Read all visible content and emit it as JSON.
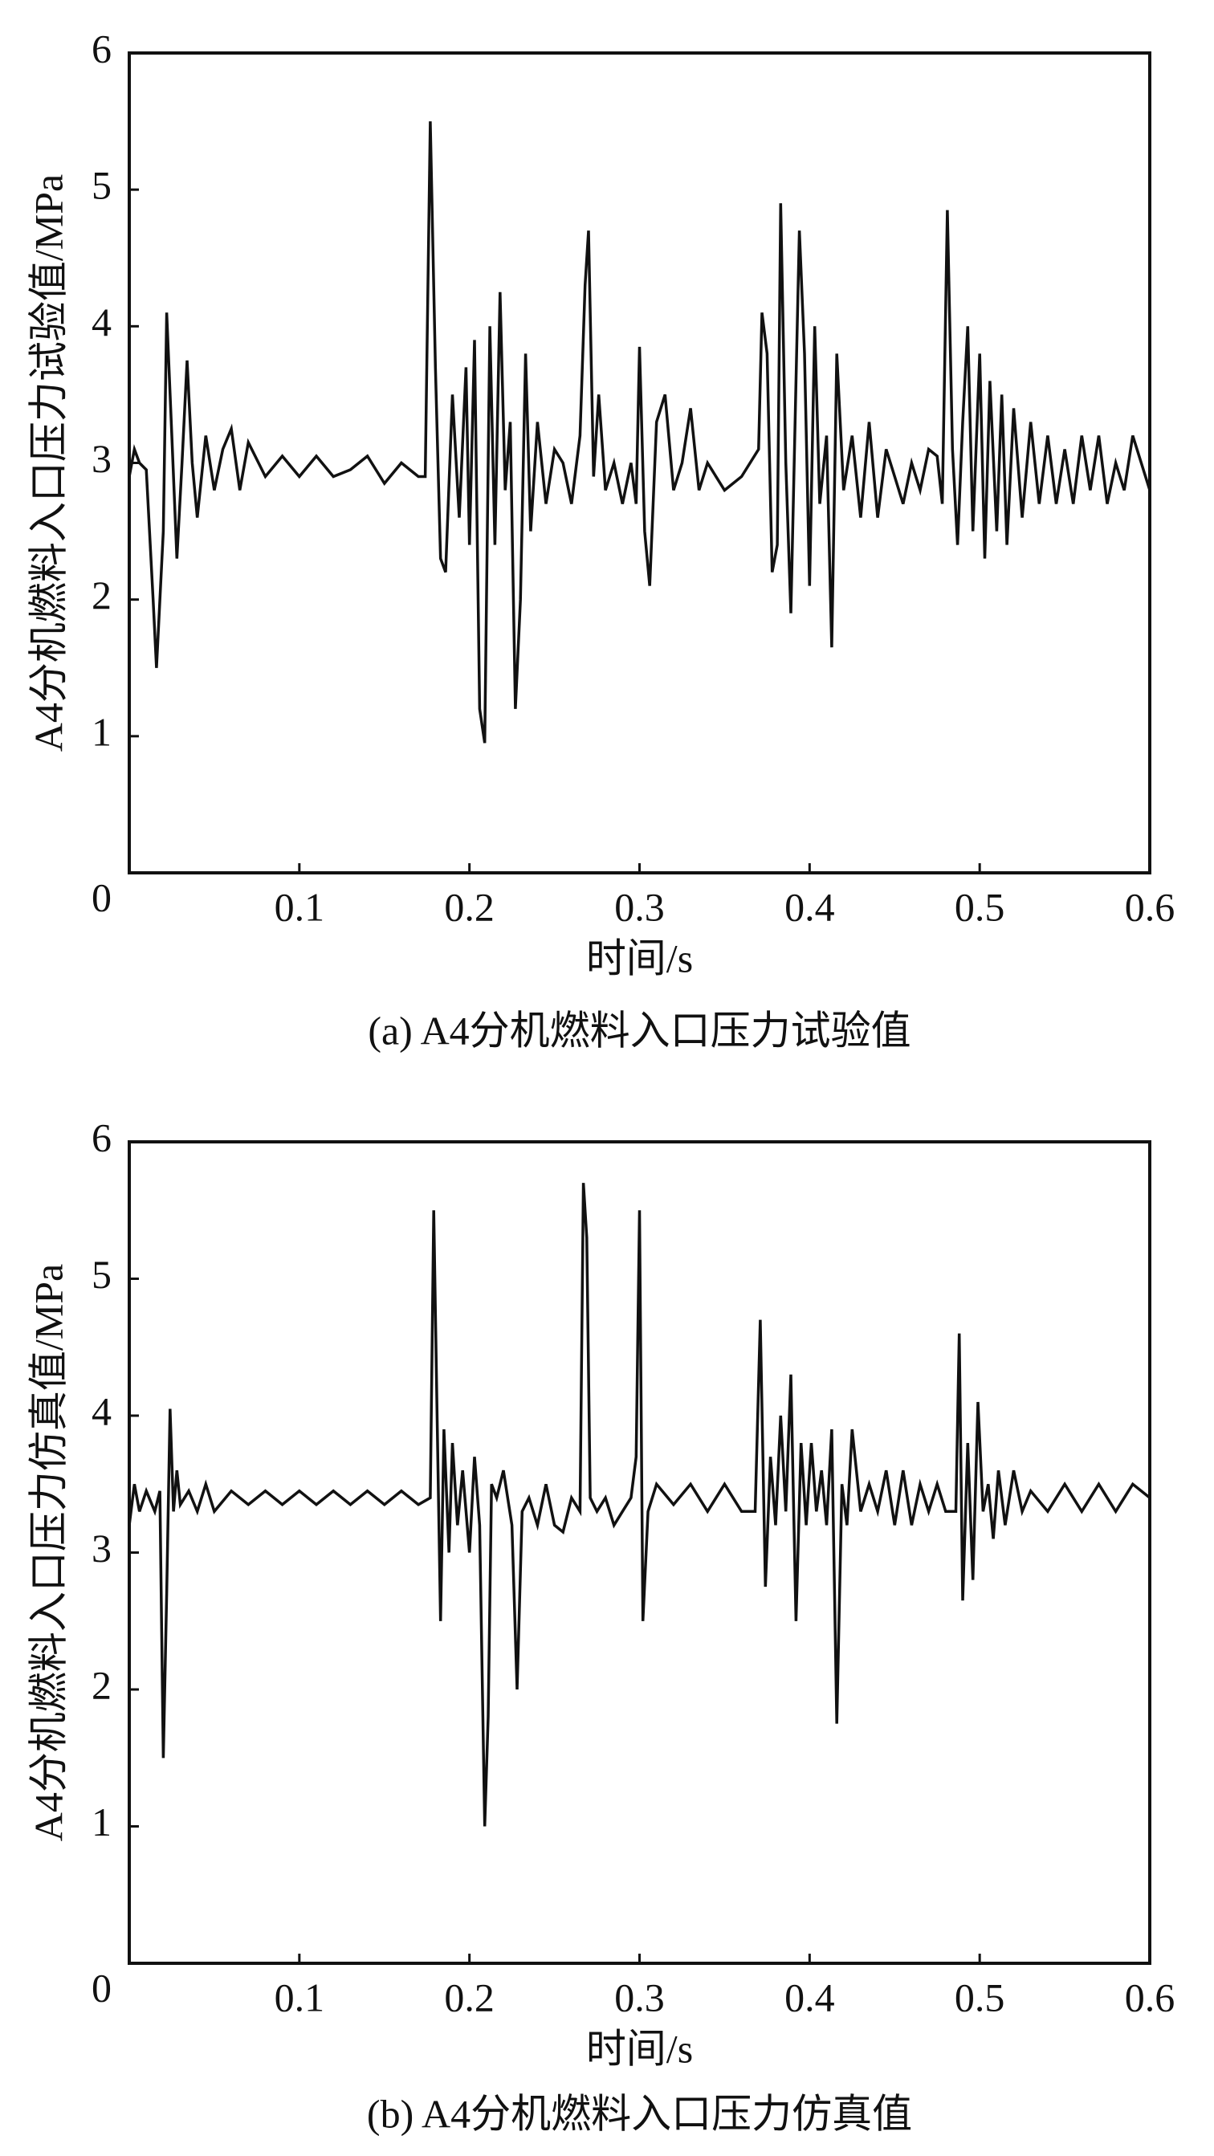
{
  "chart_data": [
    {
      "type": "line",
      "title": "(a) A4分机燃料入口压力试验值",
      "x_label": "时间/s",
      "y_label": "A4分机燃料入口压力试验值/MPa",
      "color": "#111111",
      "xlim": [
        0,
        0.6
      ],
      "ylim": [
        0,
        6
      ],
      "xticks": [
        0.1,
        0.2,
        0.3,
        0.4,
        0.5,
        0.6
      ],
      "yticks": [
        0,
        1,
        2,
        3,
        4,
        5,
        6
      ],
      "x": [
        0,
        0.003,
        0.006,
        0.01,
        0.014,
        0.016,
        0.02,
        0.022,
        0.025,
        0.028,
        0.031,
        0.034,
        0.037,
        0.04,
        0.045,
        0.05,
        0.055,
        0.06,
        0.065,
        0.07,
        0.08,
        0.09,
        0.1,
        0.11,
        0.12,
        0.13,
        0.14,
        0.15,
        0.16,
        0.17,
        0.174,
        0.177,
        0.18,
        0.183,
        0.186,
        0.19,
        0.194,
        0.198,
        0.2,
        0.203,
        0.206,
        0.209,
        0.212,
        0.215,
        0.218,
        0.221,
        0.224,
        0.227,
        0.23,
        0.233,
        0.236,
        0.24,
        0.245,
        0.25,
        0.255,
        0.26,
        0.265,
        0.268,
        0.27,
        0.273,
        0.276,
        0.28,
        0.285,
        0.29,
        0.295,
        0.298,
        0.3,
        0.303,
        0.306,
        0.31,
        0.315,
        0.32,
        0.325,
        0.33,
        0.335,
        0.34,
        0.35,
        0.36,
        0.37,
        0.372,
        0.375,
        0.378,
        0.381,
        0.383,
        0.386,
        0.389,
        0.392,
        0.394,
        0.397,
        0.4,
        0.403,
        0.406,
        0.41,
        0.413,
        0.416,
        0.42,
        0.425,
        0.43,
        0.435,
        0.44,
        0.445,
        0.45,
        0.455,
        0.46,
        0.465,
        0.47,
        0.475,
        0.478,
        0.481,
        0.484,
        0.487,
        0.49,
        0.493,
        0.496,
        0.5,
        0.503,
        0.506,
        0.51,
        0.513,
        0.516,
        0.52,
        0.525,
        0.53,
        0.535,
        0.54,
        0.545,
        0.55,
        0.555,
        0.56,
        0.565,
        0.57,
        0.575,
        0.58,
        0.585,
        0.59,
        0.595,
        0.6
      ],
      "values": [
        2.9,
        3.1,
        3.0,
        2.95,
        2.0,
        1.5,
        2.5,
        4.1,
        3.2,
        2.3,
        3.0,
        3.75,
        3.0,
        2.6,
        3.2,
        2.8,
        3.1,
        3.25,
        2.8,
        3.15,
        2.9,
        3.05,
        2.9,
        3.05,
        2.9,
        2.95,
        3.05,
        2.85,
        3.0,
        2.9,
        2.9,
        5.5,
        3.7,
        2.3,
        2.2,
        3.5,
        2.6,
        3.7,
        2.4,
        3.9,
        1.2,
        0.95,
        4.0,
        2.4,
        4.25,
        2.8,
        3.3,
        1.2,
        2.0,
        3.8,
        2.5,
        3.3,
        2.7,
        3.1,
        3.0,
        2.7,
        3.2,
        4.3,
        4.7,
        2.9,
        3.5,
        2.8,
        3.0,
        2.7,
        3.0,
        2.7,
        3.85,
        2.5,
        2.1,
        3.3,
        3.5,
        2.8,
        3.0,
        3.4,
        2.8,
        3.0,
        2.8,
        2.9,
        3.1,
        4.1,
        3.8,
        2.2,
        2.4,
        4.9,
        3.0,
        1.9,
        3.6,
        4.7,
        3.8,
        2.1,
        4.0,
        2.7,
        3.2,
        1.65,
        3.8,
        2.8,
        3.2,
        2.6,
        3.3,
        2.6,
        3.1,
        2.9,
        2.7,
        3.0,
        2.8,
        3.1,
        3.05,
        2.7,
        4.85,
        3.1,
        2.4,
        3.3,
        4.0,
        2.5,
        3.8,
        2.3,
        3.6,
        2.5,
        3.5,
        2.4,
        3.4,
        2.6,
        3.3,
        2.7,
        3.2,
        2.7,
        3.1,
        2.7,
        3.2,
        2.8,
        3.2,
        2.7,
        3.0,
        2.8,
        3.2,
        3.0,
        2.8
      ]
    },
    {
      "type": "line",
      "title": "(b) A4分机燃料入口压力仿真值",
      "x_label": "时间/s",
      "y_label": "A4分机燃料入口压力仿真值/MPa",
      "color": "#111111",
      "xlim": [
        0,
        0.6
      ],
      "ylim": [
        0,
        6
      ],
      "xticks": [
        0.1,
        0.2,
        0.3,
        0.4,
        0.5,
        0.6
      ],
      "yticks": [
        0,
        1,
        2,
        3,
        4,
        5,
        6
      ],
      "x": [
        0,
        0.003,
        0.006,
        0.01,
        0.015,
        0.018,
        0.02,
        0.022,
        0.024,
        0.026,
        0.028,
        0.03,
        0.035,
        0.04,
        0.045,
        0.05,
        0.06,
        0.07,
        0.08,
        0.09,
        0.1,
        0.11,
        0.12,
        0.13,
        0.14,
        0.15,
        0.16,
        0.17,
        0.177,
        0.179,
        0.181,
        0.183,
        0.185,
        0.188,
        0.19,
        0.193,
        0.196,
        0.2,
        0.203,
        0.206,
        0.209,
        0.211,
        0.213,
        0.216,
        0.22,
        0.225,
        0.228,
        0.231,
        0.235,
        0.24,
        0.245,
        0.25,
        0.255,
        0.26,
        0.265,
        0.267,
        0.269,
        0.271,
        0.275,
        0.28,
        0.285,
        0.29,
        0.295,
        0.298,
        0.3,
        0.302,
        0.305,
        0.31,
        0.32,
        0.33,
        0.34,
        0.35,
        0.36,
        0.368,
        0.371,
        0.374,
        0.377,
        0.38,
        0.383,
        0.386,
        0.389,
        0.392,
        0.395,
        0.398,
        0.401,
        0.404,
        0.407,
        0.41,
        0.413,
        0.416,
        0.419,
        0.422,
        0.425,
        0.43,
        0.435,
        0.44,
        0.445,
        0.45,
        0.455,
        0.46,
        0.465,
        0.47,
        0.475,
        0.48,
        0.486,
        0.488,
        0.49,
        0.493,
        0.496,
        0.499,
        0.502,
        0.505,
        0.508,
        0.511,
        0.515,
        0.52,
        0.525,
        0.53,
        0.54,
        0.55,
        0.56,
        0.57,
        0.58,
        0.59,
        0.6
      ],
      "values": [
        3.2,
        3.5,
        3.3,
        3.45,
        3.3,
        3.45,
        1.5,
        2.7,
        4.05,
        3.3,
        3.6,
        3.35,
        3.45,
        3.3,
        3.5,
        3.3,
        3.45,
        3.35,
        3.45,
        3.35,
        3.45,
        3.35,
        3.45,
        3.35,
        3.45,
        3.35,
        3.45,
        3.35,
        3.4,
        5.5,
        4.0,
        2.5,
        3.9,
        3.0,
        3.8,
        3.2,
        3.6,
        3.0,
        3.7,
        3.2,
        1.0,
        1.8,
        3.5,
        3.4,
        3.6,
        3.2,
        2.0,
        3.3,
        3.4,
        3.2,
        3.5,
        3.2,
        3.15,
        3.4,
        3.3,
        5.7,
        5.3,
        3.4,
        3.3,
        3.4,
        3.2,
        3.3,
        3.4,
        3.7,
        5.5,
        2.5,
        3.3,
        3.5,
        3.35,
        3.5,
        3.3,
        3.5,
        3.3,
        3.3,
        4.7,
        2.75,
        3.7,
        3.2,
        4.0,
        3.3,
        4.3,
        2.5,
        3.8,
        3.2,
        3.8,
        3.3,
        3.6,
        3.2,
        3.9,
        1.75,
        3.5,
        3.2,
        3.9,
        3.3,
        3.5,
        3.3,
        3.6,
        3.2,
        3.6,
        3.2,
        3.5,
        3.3,
        3.5,
        3.3,
        3.3,
        4.6,
        2.65,
        3.8,
        2.8,
        4.1,
        3.3,
        3.5,
        3.1,
        3.6,
        3.2,
        3.6,
        3.3,
        3.45,
        3.3,
        3.5,
        3.3,
        3.5,
        3.3,
        3.5,
        3.4
      ]
    }
  ]
}
